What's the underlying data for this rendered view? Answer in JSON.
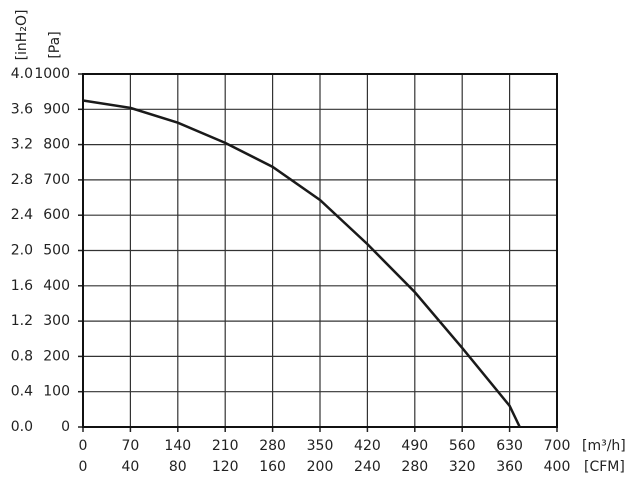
{
  "chart_data": {
    "type": "line",
    "x": [
      0,
      70,
      140,
      210,
      280,
      350,
      420,
      490,
      560,
      630,
      645
    ],
    "series": [
      {
        "color": "#1a1a1a",
        "values": [
          925,
          904,
          862,
          805,
          737,
          643,
          518,
          382,
          224,
          60,
          0
        ]
      }
    ],
    "xlim": [
      0,
      700
    ],
    "xticks": [
      0,
      70,
      140,
      210,
      280,
      350,
      420,
      490,
      560,
      630,
      700
    ],
    "x_label": "[m³/h]",
    "x2lim": [
      0,
      400
    ],
    "x2ticks": [
      0,
      40,
      80,
      120,
      160,
      200,
      240,
      280,
      320,
      360,
      400
    ],
    "x2_label": "[CFM]",
    "ylim": [
      0,
      1000
    ],
    "yticks": [
      0,
      100,
      200,
      300,
      400,
      500,
      600,
      700,
      800,
      900,
      1000
    ],
    "y_label": "[Pa]",
    "y2lim": [
      0,
      4
    ],
    "y2ticks": [
      {
        "value": 0,
        "label": "0.0"
      },
      0.4,
      0.8,
      1.2,
      1.6,
      {
        "value": 2,
        "label": "2.0"
      },
      2.4,
      2.8,
      3.2,
      3.6,
      {
        "value": 4,
        "label": "4.0"
      }
    ],
    "y2_label": "[inH₂O]",
    "grid": true
  }
}
